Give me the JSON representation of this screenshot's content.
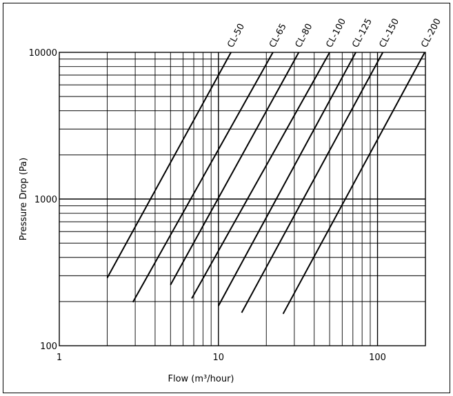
{
  "chart_data": {
    "type": "line",
    "title": "",
    "xlabel": "Flow (m³/hour)",
    "ylabel": "Pressure Drop (Pa)",
    "x_scale": "log",
    "y_scale": "log",
    "xlim": [
      1,
      200
    ],
    "ylim": [
      100,
      10000
    ],
    "x_ticks": [
      {
        "value": 1,
        "label": "1"
      },
      {
        "value": 10,
        "label": "10"
      },
      {
        "value": 100,
        "label": "100"
      }
    ],
    "y_ticks": [
      {
        "value": 100,
        "label": "100"
      },
      {
        "value": 1000,
        "label": "1000"
      },
      {
        "value": 10000,
        "label": "10000"
      }
    ],
    "grid": true,
    "series": [
      {
        "name": "CL-50",
        "x": [
          2.0,
          12.0
        ],
        "y": [
          290,
          10000
        ]
      },
      {
        "name": "CL-65",
        "x": [
          2.9,
          22.0
        ],
        "y": [
          198,
          10000
        ]
      },
      {
        "name": "CL-80",
        "x": [
          5.0,
          32.0
        ],
        "y": [
          260,
          10000
        ]
      },
      {
        "name": "CL-100",
        "x": [
          6.8,
          50.0
        ],
        "y": [
          210,
          10000
        ]
      },
      {
        "name": "CL-125",
        "x": [
          10.0,
          73.0
        ],
        "y": [
          187,
          10000
        ]
      },
      {
        "name": "CL-150",
        "x": [
          14.0,
          108.0
        ],
        "y": [
          168,
          10000
        ]
      },
      {
        "name": "CL-200",
        "x": [
          25.5,
          198.0
        ],
        "y": [
          165,
          10000
        ]
      }
    ]
  }
}
